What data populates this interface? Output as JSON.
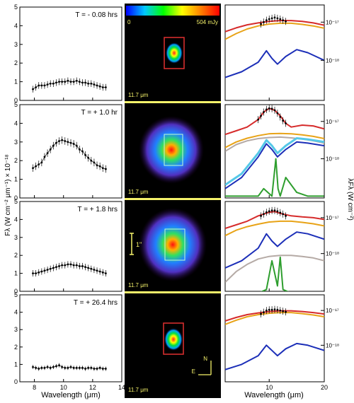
{
  "figure": {
    "left_ylabel": "Fλ (W cm⁻² μm⁻¹) × 10⁻¹⁸",
    "left_xlabel": "Wavelength (μm)",
    "right_ylabel": "λFλ (W cm⁻²)",
    "right_xlabel": "Wavelength (μm)",
    "colorbar_min": "0",
    "colorbar_max": "504 mJy",
    "image_band": "11.7 μm",
    "scale_bar": "1\"",
    "compass_n": "N",
    "compass_e": "E",
    "divider_color": "#f5f26a",
    "colors": {
      "red": "#d62b2b",
      "orange": "#e8a317",
      "blue": "#1c2fb8",
      "cyan": "#55c8e8",
      "gray": "#b5aaa5",
      "green": "#2e9e2e"
    }
  },
  "chart_data": [
    {
      "type": "scatter",
      "panel": 1,
      "title": "T = - 0.08 hrs",
      "xlim": [
        7,
        14
      ],
      "ylim": [
        0,
        5
      ],
      "xticks": [
        8,
        10,
        12,
        14
      ],
      "yticks": [
        0,
        1,
        2,
        3,
        4,
        5
      ],
      "x": [
        7.9,
        8.1,
        8.3,
        8.5,
        8.7,
        8.9,
        9.1,
        9.3,
        9.5,
        9.7,
        9.9,
        10.1,
        10.3,
        10.5,
        10.7,
        10.9,
        11.1,
        11.3,
        11.5,
        11.7,
        11.9,
        12.1,
        12.3,
        12.5,
        12.7,
        12.9
      ],
      "y": [
        0.6,
        0.7,
        0.8,
        0.8,
        0.8,
        0.85,
        0.9,
        0.9,
        0.95,
        1.0,
        1.0,
        1.0,
        1.05,
        1.0,
        1.0,
        1.05,
        1.0,
        0.95,
        0.95,
        0.9,
        0.9,
        0.85,
        0.8,
        0.75,
        0.7,
        0.7
      ],
      "err": 0.18
    },
    {
      "type": "scatter",
      "panel": 2,
      "title": "T = + 1.0 hr",
      "xlim": [
        7,
        14
      ],
      "ylim": [
        0,
        5
      ],
      "xticks": [
        8,
        10,
        12,
        14
      ],
      "yticks": [
        0,
        1,
        2,
        3,
        4,
        5
      ],
      "x": [
        7.9,
        8.1,
        8.3,
        8.5,
        8.7,
        8.9,
        9.1,
        9.3,
        9.5,
        9.7,
        9.9,
        10.1,
        10.3,
        10.5,
        10.7,
        10.9,
        11.1,
        11.3,
        11.5,
        11.7,
        11.9,
        12.1,
        12.3,
        12.5,
        12.7,
        12.9
      ],
      "y": [
        1.6,
        1.7,
        1.8,
        1.9,
        2.2,
        2.4,
        2.6,
        2.8,
        2.95,
        3.05,
        3.1,
        3.05,
        3.0,
        2.95,
        2.9,
        2.8,
        2.6,
        2.5,
        2.3,
        2.15,
        2.0,
        1.9,
        1.75,
        1.7,
        1.6,
        1.55
      ],
      "err": 0.2
    },
    {
      "type": "scatter",
      "panel": 3,
      "title": "T = + 1.8 hrs",
      "xlim": [
        7,
        14
      ],
      "ylim": [
        0,
        5
      ],
      "xticks": [
        8,
        10,
        12,
        14
      ],
      "yticks": [
        0,
        1,
        2,
        3,
        4,
        5
      ],
      "x": [
        7.9,
        8.1,
        8.3,
        8.5,
        8.7,
        8.9,
        9.1,
        9.3,
        9.5,
        9.7,
        9.9,
        10.1,
        10.3,
        10.5,
        10.7,
        10.9,
        11.1,
        11.3,
        11.5,
        11.7,
        11.9,
        12.1,
        12.3,
        12.5,
        12.7,
        12.9
      ],
      "y": [
        1.0,
        1.0,
        1.05,
        1.1,
        1.15,
        1.2,
        1.25,
        1.3,
        1.35,
        1.4,
        1.45,
        1.45,
        1.5,
        1.5,
        1.45,
        1.45,
        1.4,
        1.4,
        1.35,
        1.3,
        1.25,
        1.2,
        1.15,
        1.1,
        1.05,
        1.0
      ],
      "err": 0.18
    },
    {
      "type": "scatter",
      "panel": 4,
      "title": "T = + 26.4 hrs",
      "xlim": [
        7,
        14
      ],
      "ylim": [
        0,
        5
      ],
      "xticks": [
        8,
        10,
        12,
        14
      ],
      "yticks": [
        0,
        1,
        2,
        3,
        4,
        5
      ],
      "x": [
        7.9,
        8.1,
        8.3,
        8.5,
        8.7,
        8.9,
        9.1,
        9.3,
        9.5,
        9.7,
        9.9,
        10.1,
        10.3,
        10.5,
        10.7,
        10.9,
        11.1,
        11.3,
        11.5,
        11.7,
        11.9,
        12.1,
        12.3,
        12.5,
        12.7,
        12.9
      ],
      "y": [
        0.85,
        0.8,
        0.75,
        0.8,
        0.8,
        0.85,
        0.8,
        0.85,
        0.9,
        0.95,
        0.85,
        0.8,
        0.8,
        0.85,
        0.8,
        0.8,
        0.8,
        0.8,
        0.75,
        0.8,
        0.8,
        0.75,
        0.75,
        0.8,
        0.75,
        0.75
      ],
      "err": 0.12
    },
    {
      "type": "line",
      "panel": 5,
      "xlim": [
        2,
        20
      ],
      "ylog": true,
      "yticklabels": [
        "10⁻¹⁷",
        "10⁻¹⁸"
      ],
      "xticks": [
        10,
        20
      ],
      "series": [
        {
          "color": "red",
          "x": [
            2,
            4,
            6,
            8,
            10,
            12,
            14,
            16,
            18,
            20
          ],
          "logy": [
            -17.25,
            -17.15,
            -17.07,
            -17.02,
            -16.98,
            -16.96,
            -16.96,
            -16.98,
            -17.02,
            -17.08
          ]
        },
        {
          "color": "orange",
          "x": [
            2,
            4,
            6,
            8,
            10,
            12,
            14,
            16,
            18,
            20
          ],
          "logy": [
            -17.45,
            -17.3,
            -17.18,
            -17.1,
            -17.05,
            -17.03,
            -17.03,
            -17.06,
            -17.1,
            -17.16
          ]
        },
        {
          "color": "blue",
          "x": [
            2,
            5,
            8,
            9.5,
            10.5,
            11.5,
            13,
            15,
            17,
            20
          ],
          "logy": [
            -18.45,
            -18.3,
            -18.05,
            -17.75,
            -17.95,
            -18.1,
            -17.9,
            -17.72,
            -17.8,
            -18.0
          ]
        }
      ],
      "points": {
        "x": [
          8.5,
          9,
          9.5,
          10,
          10.5,
          11,
          11.5,
          12,
          12.5,
          13
        ],
        "logy": [
          -17.05,
          -17.0,
          -16.95,
          -16.92,
          -16.9,
          -16.88,
          -16.9,
          -16.92,
          -16.95,
          -16.98
        ]
      }
    },
    {
      "type": "line",
      "panel": 6,
      "xlim": [
        2,
        20
      ],
      "ylog": true,
      "yticklabels": [
        "10⁻¹⁷",
        "10⁻¹⁸"
      ],
      "xticks": [
        10,
        20
      ],
      "series": [
        {
          "color": "red",
          "x": [
            2,
            4,
            6,
            8,
            9,
            10,
            11,
            12,
            13,
            14,
            16,
            18,
            20
          ],
          "logy": [
            -17.35,
            -17.25,
            -17.15,
            -16.95,
            -16.75,
            -16.65,
            -16.7,
            -16.85,
            -17.05,
            -17.15,
            -17.1,
            -17.12,
            -17.2
          ]
        },
        {
          "color": "orange",
          "x": [
            2,
            4,
            6,
            8,
            10,
            12,
            14,
            16,
            18,
            20
          ],
          "logy": [
            -17.7,
            -17.55,
            -17.45,
            -17.38,
            -17.33,
            -17.32,
            -17.33,
            -17.36,
            -17.4,
            -17.46
          ]
        },
        {
          "color": "gray",
          "x": [
            2,
            4,
            6,
            8,
            10,
            12,
            14,
            16,
            18,
            20
          ],
          "logy": [
            -17.8,
            -17.62,
            -17.52,
            -17.46,
            -17.43,
            -17.42,
            -17.44,
            -17.47,
            -17.52,
            -17.58
          ]
        },
        {
          "color": "cyan",
          "x": [
            2,
            5,
            8,
            9.5,
            10.5,
            11.5,
            13,
            15,
            17,
            20
          ],
          "logy": [
            -18.7,
            -18.4,
            -17.85,
            -17.5,
            -17.65,
            -17.85,
            -17.65,
            -17.45,
            -17.48,
            -17.55
          ]
        },
        {
          "color": "blue",
          "x": [
            2,
            5,
            8,
            9.5,
            10.5,
            11.5,
            13,
            15,
            17,
            20
          ],
          "logy": [
            -18.8,
            -18.5,
            -17.95,
            -17.6,
            -17.75,
            -17.95,
            -17.75,
            -17.55,
            -17.58,
            -17.65
          ]
        },
        {
          "color": "green",
          "x": [
            2,
            6,
            8,
            9,
            10.5,
            11.2,
            11.6,
            12,
            13,
            15,
            17,
            20
          ],
          "logy": [
            -19.0,
            -19.0,
            -19.0,
            -18.8,
            -19.0,
            -18.0,
            -18.8,
            -19.0,
            -18.5,
            -18.9,
            -19.0,
            -19.0
          ]
        }
      ],
      "points": {
        "x": [
          8,
          8.5,
          9,
          9.5,
          10,
          10.5,
          11,
          11.5,
          12,
          12.5,
          13
        ],
        "logy": [
          -16.95,
          -16.85,
          -16.75,
          -16.68,
          -16.65,
          -16.66,
          -16.7,
          -16.78,
          -16.88,
          -16.98,
          -17.05
        ]
      }
    },
    {
      "type": "line",
      "panel": 7,
      "xlim": [
        2,
        20
      ],
      "ylog": true,
      "yticklabels": [
        "10⁻¹⁷",
        "10⁻¹⁸"
      ],
      "xticks": [
        10,
        20
      ],
      "series": [
        {
          "color": "red",
          "x": [
            2,
            4,
            6,
            8,
            10,
            11,
            12,
            14,
            16,
            18,
            20
          ],
          "logy": [
            -17.3,
            -17.2,
            -17.1,
            -16.95,
            -16.85,
            -16.83,
            -16.88,
            -16.95,
            -16.98,
            -17.0,
            -17.05
          ]
        },
        {
          "color": "orange",
          "x": [
            2,
            4,
            6,
            8,
            10,
            12,
            14,
            16,
            18,
            20
          ],
          "logy": [
            -17.5,
            -17.35,
            -17.25,
            -17.18,
            -17.12,
            -17.1,
            -17.1,
            -17.13,
            -17.17,
            -17.23
          ]
        },
        {
          "color": "blue",
          "x": [
            2,
            5,
            8,
            9.5,
            10.5,
            11.5,
            13,
            15,
            17,
            20
          ],
          "logy": [
            -18.4,
            -18.2,
            -17.85,
            -17.45,
            -17.65,
            -17.8,
            -17.6,
            -17.4,
            -17.45,
            -17.6
          ]
        },
        {
          "color": "gray",
          "x": [
            2,
            4,
            6,
            8,
            10,
            12,
            14,
            16,
            18,
            20
          ],
          "logy": [
            -18.8,
            -18.5,
            -18.3,
            -18.15,
            -18.08,
            -18.05,
            -18.05,
            -18.08,
            -18.12,
            -18.2
          ]
        },
        {
          "color": "green",
          "x": [
            2,
            8,
            9.5,
            10.5,
            11.5,
            12,
            12.5,
            14,
            17,
            20
          ],
          "logy": [
            -19.1,
            -19.1,
            -19.0,
            -18.2,
            -18.9,
            -18.1,
            -19.0,
            -19.1,
            -19.1,
            -19.1
          ]
        }
      ],
      "points": {
        "x": [
          8.5,
          9,
          9.5,
          10,
          10.5,
          11,
          11.5,
          12,
          12.5,
          13
        ],
        "logy": [
          -16.95,
          -16.9,
          -16.85,
          -16.82,
          -16.8,
          -16.8,
          -16.82,
          -16.86,
          -16.9,
          -16.95
        ]
      }
    },
    {
      "type": "line",
      "panel": 8,
      "xlim": [
        2,
        20
      ],
      "ylog": true,
      "yticklabels": [
        "10⁻¹⁷",
        "10⁻¹⁸"
      ],
      "xticks": [
        10,
        20
      ],
      "series": [
        {
          "color": "red",
          "x": [
            2,
            4,
            6,
            8,
            10,
            12,
            14,
            16,
            18,
            20
          ],
          "logy": [
            -17.3,
            -17.2,
            -17.12,
            -17.07,
            -17.03,
            -17.01,
            -17.01,
            -17.03,
            -17.06,
            -17.1
          ]
        },
        {
          "color": "orange",
          "x": [
            2,
            4,
            6,
            8,
            10,
            12,
            14,
            16,
            18,
            20
          ],
          "logy": [
            -17.4,
            -17.28,
            -17.18,
            -17.12,
            -17.08,
            -17.06,
            -17.06,
            -17.09,
            -17.13,
            -17.18
          ]
        },
        {
          "color": "blue",
          "x": [
            2,
            5,
            8,
            9.5,
            10.5,
            11.5,
            13,
            15,
            17,
            20
          ],
          "logy": [
            -18.7,
            -18.55,
            -18.3,
            -18.0,
            -18.15,
            -18.3,
            -18.1,
            -17.95,
            -18.0,
            -18.15
          ]
        }
      ],
      "points": {
        "x": [
          8.5,
          9,
          9.5,
          10,
          10.5,
          11,
          11.5,
          12,
          12.5,
          13
        ],
        "logy": [
          -17.1,
          -17.05,
          -17.0,
          -16.98,
          -16.98,
          -16.97,
          -16.98,
          -17.0,
          -17.02,
          -17.04
        ]
      }
    }
  ]
}
